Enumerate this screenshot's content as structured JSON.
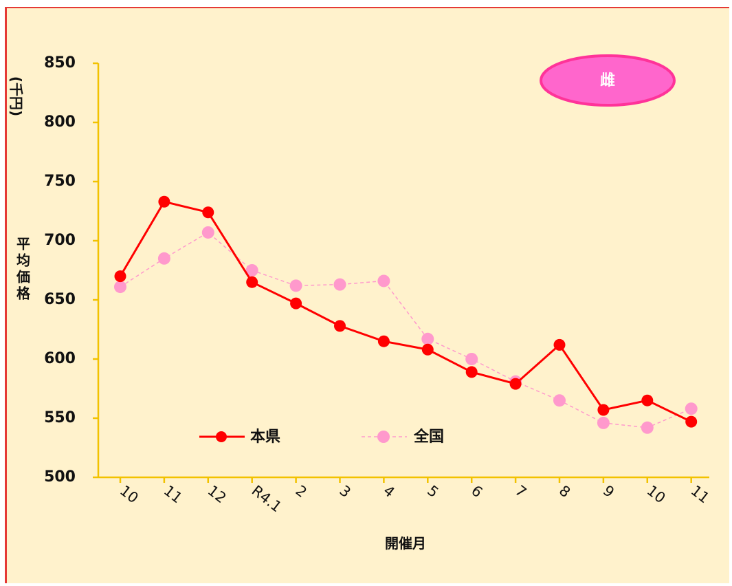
{
  "chart_data": {
    "type": "line",
    "categories": [
      "10",
      "11",
      "12",
      "R4.1",
      "2",
      "3",
      "4",
      "5",
      "6",
      "7",
      "8",
      "9",
      "10",
      "11"
    ],
    "series": [
      {
        "name": "本県",
        "color": "#ff0000",
        "style": "solid",
        "values": [
          670,
          733,
          724,
          665,
          647,
          628,
          615,
          608,
          589,
          579,
          612,
          557,
          565,
          547
        ]
      },
      {
        "name": "全国",
        "color": "#ff99cc",
        "style": "dashed",
        "values": [
          661,
          685,
          707,
          675,
          662,
          663,
          666,
          617,
          600,
          581,
          565,
          546,
          542,
          558
        ]
      }
    ],
    "ylim": [
      500,
      850
    ],
    "yticks": [
      500,
      550,
      600,
      650,
      700,
      750,
      800,
      850
    ],
    "ylabel": "平均価格",
    "yunit": "(千円)",
    "xlabel": "開催月",
    "badge": "雌",
    "legend_position": "bottom-left",
    "grid": false
  }
}
